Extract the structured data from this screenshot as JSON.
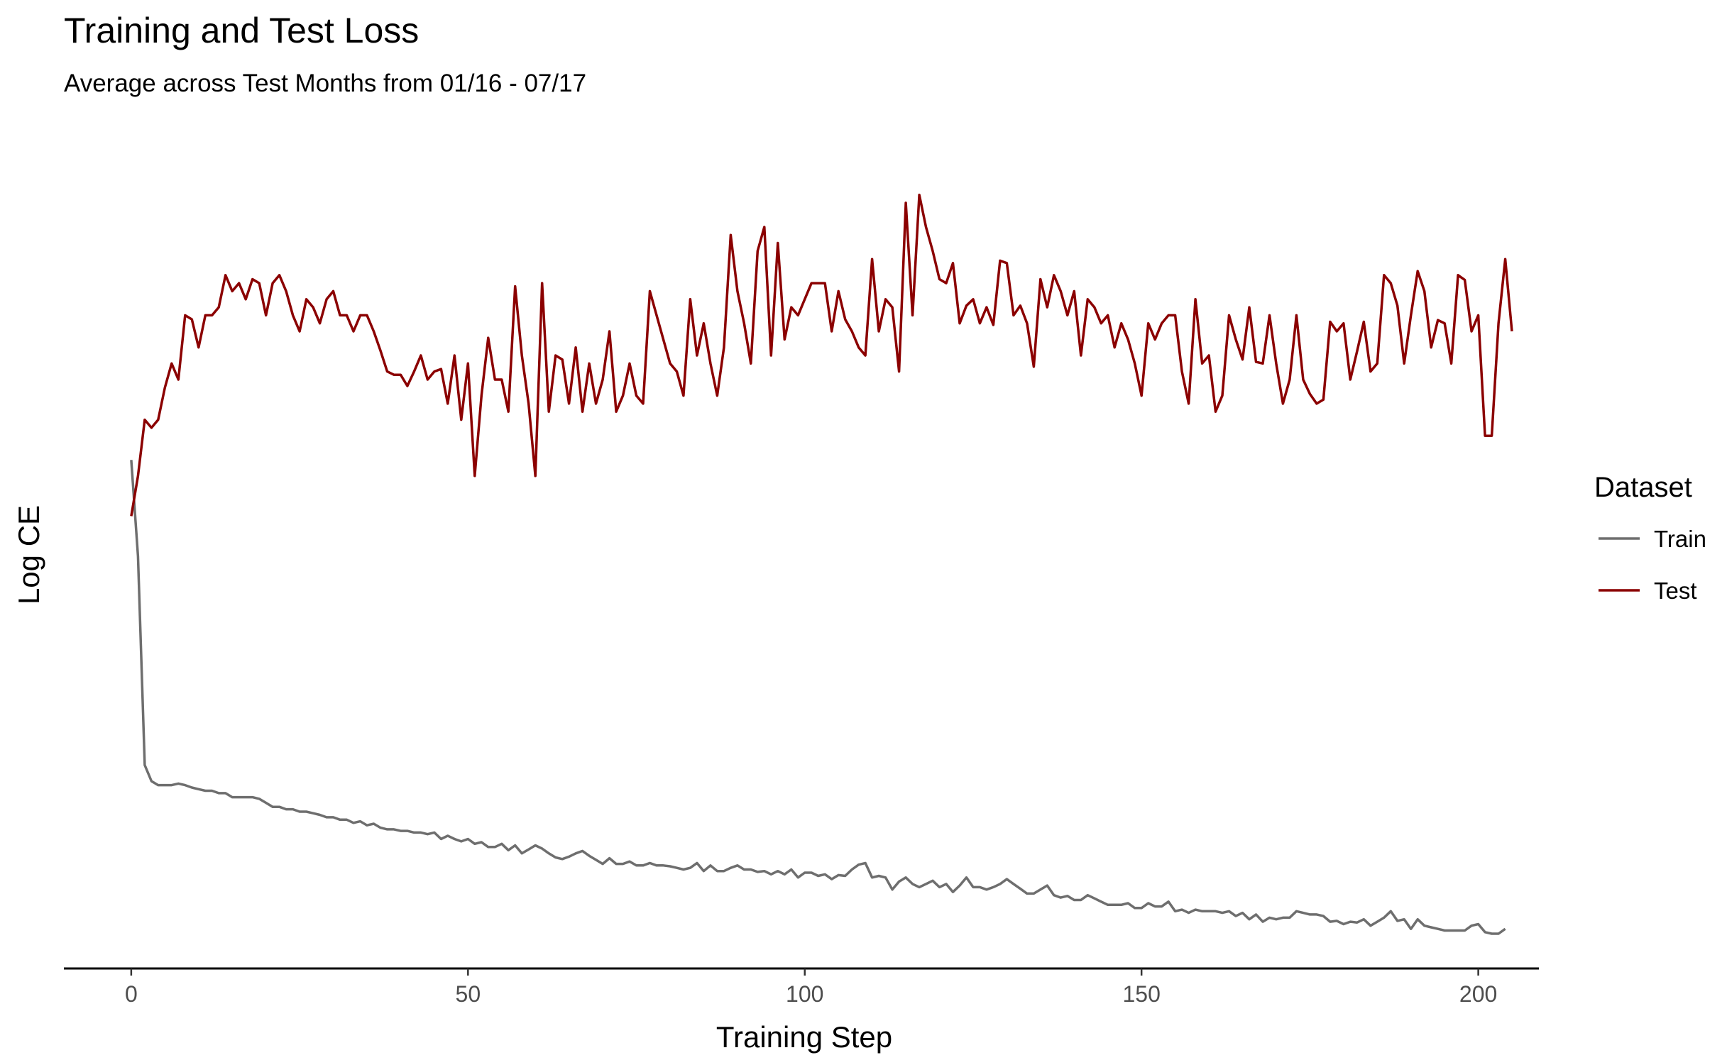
{
  "chart_data": {
    "type": "line",
    "title": "Training and Test Loss",
    "subtitle": "Average across Test Months from 01/16 - 07/17",
    "xlabel": "Training Step",
    "ylabel": "Log CE",
    "xlim": [
      -10,
      209
    ],
    "ylim": [
      0,
      1
    ],
    "xticks": [
      0,
      50,
      100,
      150,
      200
    ],
    "yticks_shown": false,
    "grid": false,
    "legend": {
      "title": "Dataset",
      "position": "right"
    },
    "series": [
      {
        "name": "Train",
        "color": "#6e6e6e",
        "x_start": 0,
        "x_step": 1,
        "values": [
          0.62,
          0.5,
          0.24,
          0.22,
          0.215,
          0.215,
          0.215,
          0.217,
          0.215,
          0.212,
          0.21,
          0.208,
          0.208,
          0.205,
          0.205,
          0.2,
          0.2,
          0.2,
          0.2,
          0.198,
          0.193,
          0.188,
          0.188,
          0.185,
          0.185,
          0.182,
          0.182,
          0.18,
          0.178,
          0.175,
          0.175,
          0.172,
          0.172,
          0.168,
          0.17,
          0.165,
          0.167,
          0.162,
          0.16,
          0.16,
          0.158,
          0.158,
          0.156,
          0.156,
          0.154,
          0.156,
          0.148,
          0.152,
          0.148,
          0.145,
          0.148,
          0.142,
          0.144,
          0.138,
          0.138,
          0.142,
          0.134,
          0.14,
          0.13,
          0.135,
          0.14,
          0.136,
          0.13,
          0.125,
          0.123,
          0.126,
          0.13,
          0.133,
          0.127,
          0.122,
          0.117,
          0.124,
          0.117,
          0.117,
          0.12,
          0.115,
          0.115,
          0.118,
          0.115,
          0.115,
          0.114,
          0.112,
          0.11,
          0.112,
          0.118,
          0.108,
          0.115,
          0.108,
          0.108,
          0.112,
          0.115,
          0.11,
          0.11,
          0.107,
          0.108,
          0.104,
          0.108,
          0.104,
          0.11,
          0.1,
          0.106,
          0.106,
          0.102,
          0.104,
          0.098,
          0.103,
          0.102,
          0.11,
          0.116,
          0.118,
          0.1,
          0.102,
          0.1,
          0.085,
          0.095,
          0.1,
          0.092,
          0.088,
          0.092,
          0.096,
          0.088,
          0.092,
          0.082,
          0.09,
          0.1,
          0.088,
          0.088,
          0.085,
          0.088,
          0.092,
          0.098,
          0.092,
          0.086,
          0.08,
          0.08,
          0.085,
          0.09,
          0.078,
          0.075,
          0.077,
          0.072,
          0.072,
          0.078,
          0.074,
          0.07,
          0.066,
          0.066,
          0.066,
          0.068,
          0.062,
          0.062,
          0.068,
          0.064,
          0.064,
          0.07,
          0.058,
          0.06,
          0.056,
          0.06,
          0.058,
          0.058,
          0.058,
          0.056,
          0.058,
          0.052,
          0.056,
          0.048,
          0.054,
          0.045,
          0.05,
          0.048,
          0.05,
          0.05,
          0.058,
          0.056,
          0.054,
          0.054,
          0.052,
          0.045,
          0.046,
          0.042,
          0.045,
          0.044,
          0.048,
          0.04,
          0.045,
          0.05,
          0.058,
          0.046,
          0.048,
          0.036,
          0.048,
          0.04,
          0.038,
          0.036,
          0.034,
          0.034,
          0.034,
          0.034,
          0.04,
          0.042,
          0.032,
          0.03,
          0.03,
          0.036
        ]
      },
      {
        "name": "Test",
        "color": "#8b0000",
        "x_start": 0,
        "x_step": 1,
        "values": [
          0.55,
          0.6,
          0.67,
          0.66,
          0.67,
          0.71,
          0.74,
          0.72,
          0.8,
          0.795,
          0.76,
          0.8,
          0.8,
          0.81,
          0.85,
          0.83,
          0.84,
          0.82,
          0.845,
          0.84,
          0.8,
          0.84,
          0.85,
          0.83,
          0.8,
          0.78,
          0.82,
          0.81,
          0.79,
          0.82,
          0.83,
          0.8,
          0.8,
          0.78,
          0.8,
          0.8,
          0.78,
          0.756,
          0.73,
          0.726,
          0.726,
          0.712,
          0.73,
          0.75,
          0.72,
          0.73,
          0.733,
          0.69,
          0.75,
          0.67,
          0.74,
          0.6,
          0.7,
          0.772,
          0.72,
          0.72,
          0.68,
          0.836,
          0.75,
          0.69,
          0.6,
          0.84,
          0.68,
          0.75,
          0.745,
          0.69,
          0.76,
          0.68,
          0.74,
          0.69,
          0.72,
          0.78,
          0.68,
          0.7,
          0.74,
          0.7,
          0.69,
          0.83,
          0.8,
          0.77,
          0.74,
          0.73,
          0.7,
          0.82,
          0.75,
          0.79,
          0.74,
          0.7,
          0.76,
          0.9,
          0.83,
          0.79,
          0.74,
          0.88,
          0.91,
          0.75,
          0.89,
          0.77,
          0.81,
          0.8,
          0.82,
          0.84,
          0.84,
          0.84,
          0.78,
          0.83,
          0.795,
          0.78,
          0.76,
          0.75,
          0.87,
          0.78,
          0.82,
          0.81,
          0.73,
          0.94,
          0.8,
          0.95,
          0.91,
          0.88,
          0.845,
          0.84,
          0.865,
          0.79,
          0.812,
          0.82,
          0.79,
          0.81,
          0.788,
          0.868,
          0.865,
          0.8,
          0.812,
          0.79,
          0.736,
          0.845,
          0.81,
          0.85,
          0.83,
          0.8,
          0.83,
          0.75,
          0.82,
          0.81,
          0.79,
          0.8,
          0.76,
          0.79,
          0.77,
          0.74,
          0.7,
          0.79,
          0.77,
          0.79,
          0.8,
          0.8,
          0.73,
          0.69,
          0.82,
          0.74,
          0.75,
          0.68,
          0.7,
          0.8,
          0.77,
          0.745,
          0.81,
          0.742,
          0.74,
          0.8,
          0.74,
          0.69,
          0.72,
          0.8,
          0.72,
          0.702,
          0.69,
          0.695,
          0.792,
          0.78,
          0.79,
          0.72,
          0.755,
          0.792,
          0.73,
          0.74,
          0.85,
          0.84,
          0.812,
          0.74,
          0.8,
          0.855,
          0.83,
          0.76,
          0.794,
          0.79,
          0.74,
          0.85,
          0.844,
          0.78,
          0.8,
          0.65,
          0.65,
          0.79,
          0.87,
          0.78
        ]
      }
    ]
  }
}
